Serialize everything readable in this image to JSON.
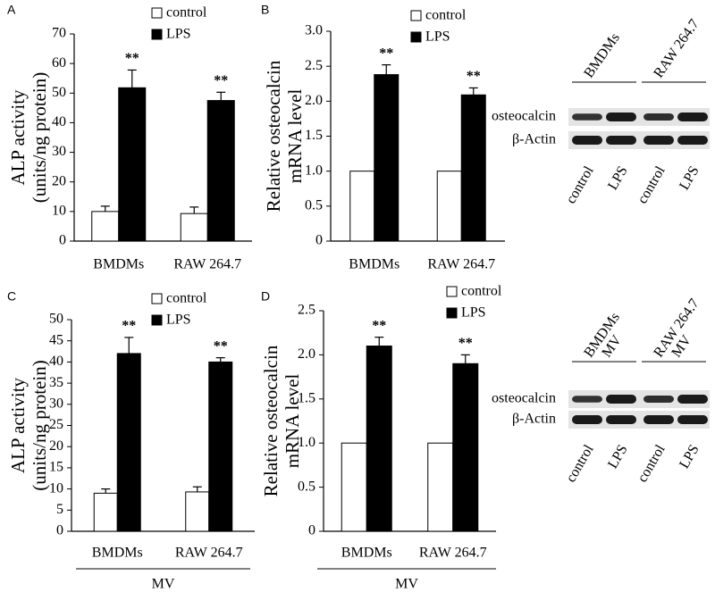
{
  "chart_data": [
    {
      "type": "bar",
      "panel": "A",
      "ylabel": [
        "ALP activity",
        "(units/ng protein)"
      ],
      "categories": [
        "BMDMs",
        "RAW 264.7"
      ],
      "series": [
        {
          "name": "control",
          "color": "#ffffff",
          "values": [
            10,
            9.3
          ],
          "errors": [
            1.8,
            2.2
          ]
        },
        {
          "name": "LPS",
          "color": "#000000",
          "values": [
            51.8,
            47.5
          ],
          "errors": [
            6,
            2.8
          ],
          "significance": [
            "**",
            "**"
          ]
        }
      ],
      "ylim": [
        0,
        70
      ],
      "yticks": [
        0,
        10,
        20,
        30,
        40,
        50,
        60,
        70
      ],
      "grid": false
    },
    {
      "type": "bar",
      "panel": "B",
      "ylabel": [
        "Relative osteocalcin",
        "mRNA level"
      ],
      "categories": [
        "BMDMs",
        "RAW 264.7"
      ],
      "series": [
        {
          "name": "control",
          "color": "#ffffff",
          "values": [
            1.0,
            1.0
          ]
        },
        {
          "name": "LPS",
          "color": "#000000",
          "values": [
            2.38,
            2.09
          ],
          "errors": [
            0.14,
            0.1
          ],
          "significance": [
            "**",
            "**"
          ]
        }
      ],
      "ylim": [
        0,
        3.0
      ],
      "yticks": [
        0,
        0.5,
        {
          "value": 1.0,
          "label": "1.0"
        },
        1.5,
        {
          "value": 2.0,
          "label": "2.0"
        },
        2.5,
        {
          "value": 3.0,
          "label": "3.0"
        }
      ],
      "grid": false
    },
    {
      "type": "bar",
      "panel": "C",
      "ylabel": [
        "ALP activity",
        "(units/ng protein)"
      ],
      "xlabel": "MV",
      "categories": [
        "BMDMs",
        "RAW 264.7"
      ],
      "series": [
        {
          "name": "control",
          "color": "#ffffff",
          "values": [
            9,
            9.3
          ],
          "errors": [
            1,
            1.2
          ]
        },
        {
          "name": "LPS",
          "color": "#000000",
          "values": [
            42,
            40
          ],
          "errors": [
            3.8,
            1
          ],
          "significance": [
            "**",
            "**"
          ]
        }
      ],
      "ylim": [
        0,
        50
      ],
      "yticks": [
        0,
        5,
        10,
        15,
        20,
        25,
        30,
        35,
        40,
        45,
        50
      ],
      "grid": false
    },
    {
      "type": "bar",
      "panel": "D",
      "ylabel": [
        "Relative osteocalcin",
        "mRNA level"
      ],
      "xlabel": "MV",
      "categories": [
        "BMDMs",
        "RAW 264.7"
      ],
      "series": [
        {
          "name": "control",
          "color": "#ffffff",
          "values": [
            1.0,
            1.0
          ]
        },
        {
          "name": "LPS",
          "color": "#000000",
          "values": [
            2.1,
            1.9
          ],
          "errors": [
            0.1,
            0.1
          ],
          "significance": [
            "**",
            "**"
          ]
        }
      ],
      "ylim": [
        0,
        2.5
      ],
      "yticks": [
        0,
        0.5,
        {
          "value": 1.0,
          "label": "1.0"
        },
        1.5,
        {
          "value": 2.0,
          "label": "2.0"
        },
        2.5
      ],
      "grid": false
    }
  ],
  "blots": [
    {
      "groups": [
        [
          "BMDMs"
        ],
        [
          "RAW 264.7"
        ]
      ],
      "rows": [
        "osteocalcin",
        "β-Actin"
      ],
      "lanes": [
        "control",
        "LPS",
        "control",
        "LPS"
      ]
    },
    {
      "groups": [
        [
          "BMDMs",
          "MV"
        ],
        [
          "RAW 264.7",
          "MV"
        ]
      ],
      "rows": [
        "osteocalcin",
        "β-Actin"
      ],
      "lanes": [
        "control",
        "LPS",
        "control",
        "LPS"
      ]
    }
  ]
}
